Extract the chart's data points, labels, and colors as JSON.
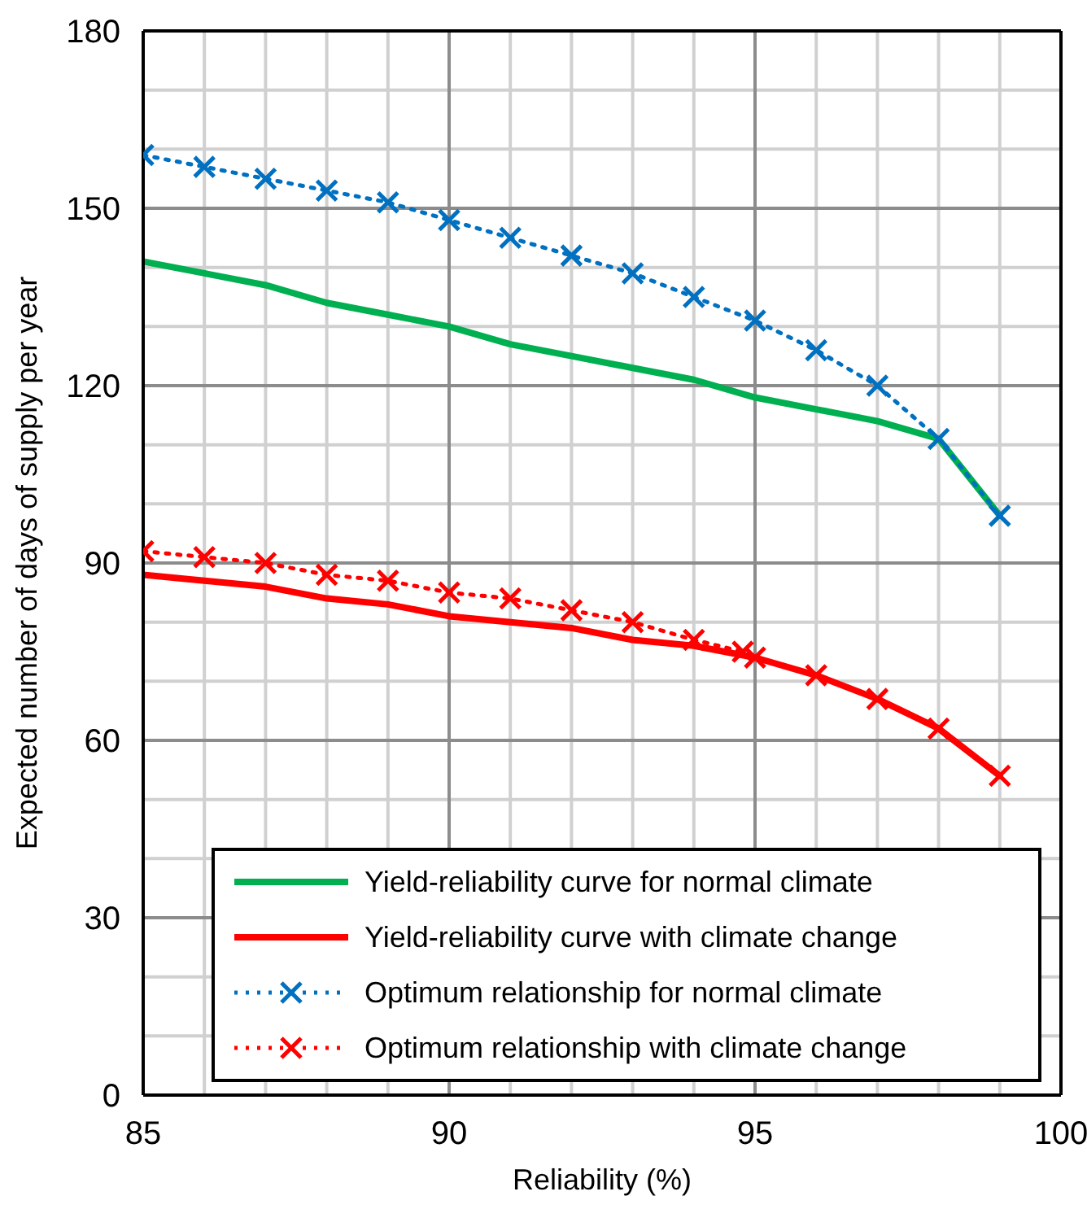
{
  "chart_data": {
    "type": "line",
    "xlabel": "Reliability (%)",
    "ylabel": "Expected number of days of supply per year",
    "xlim": [
      85,
      100
    ],
    "ylim": [
      0,
      180
    ],
    "xticks": [
      85,
      {
        "value": 86,
        "label": null
      },
      {
        "value": 87,
        "label": null
      },
      {
        "value": 88,
        "label": null
      },
      {
        "value": 89,
        "label": null
      },
      90,
      {
        "value": 91,
        "label": null
      },
      {
        "value": 92,
        "label": null
      },
      {
        "value": 93,
        "label": null
      },
      {
        "value": 94,
        "label": null
      },
      95,
      {
        "value": 96,
        "label": null
      },
      {
        "value": 97,
        "label": null
      },
      {
        "value": 98,
        "label": null
      },
      {
        "value": 99,
        "label": null
      },
      100
    ],
    "yticks": [
      0,
      {
        "value": 10,
        "label": null
      },
      {
        "value": 20,
        "label": null
      },
      30,
      {
        "value": 40,
        "label": null
      },
      {
        "value": 50,
        "label": null
      },
      60,
      {
        "value": 70,
        "label": null
      },
      {
        "value": 80,
        "label": null
      },
      90,
      {
        "value": 100,
        "label": null
      },
      {
        "value": 110,
        "label": null
      },
      120,
      {
        "value": 130,
        "label": null
      },
      {
        "value": 140,
        "label": null
      },
      150,
      {
        "value": 160,
        "label": null
      },
      {
        "value": 170,
        "label": null
      },
      180
    ],
    "grid": true,
    "legend": "bottom",
    "series": [
      {
        "name": "Yield-reliability curve for normal climate",
        "color": "#00b050",
        "line_style": "solid",
        "marker": "none",
        "x": [
          85,
          86,
          87,
          88,
          89,
          90,
          91,
          92,
          93,
          94,
          95,
          96,
          97,
          98,
          99
        ],
        "values": [
          141,
          139,
          137,
          134,
          132,
          130,
          127,
          125,
          123,
          121,
          118,
          116,
          114,
          111,
          98
        ]
      },
      {
        "name": "Yield-reliability curve with climate change",
        "color": "#ff0000",
        "line_style": "solid",
        "marker": "none",
        "x": [
          85,
          86,
          87,
          88,
          89,
          90,
          91,
          92,
          93,
          94,
          95,
          96,
          97,
          98,
          99
        ],
        "values": [
          88,
          87,
          86,
          84,
          83,
          81,
          80,
          79,
          77,
          76,
          74,
          71,
          67,
          62,
          54
        ]
      },
      {
        "name": "Optimum relationship for normal climate",
        "color": "#0070c0",
        "line_style": "dotted",
        "marker": "cross",
        "x": [
          85,
          86,
          87,
          88,
          89,
          90,
          91,
          92,
          93,
          94,
          95,
          96,
          97,
          98,
          99
        ],
        "values": [
          159,
          157,
          155,
          153,
          151,
          148,
          145,
          142,
          139,
          135,
          131,
          126,
          120,
          111,
          98
        ]
      },
      {
        "name": "Optimum relationship with climate change",
        "color": "#ff0000",
        "line_style": "dotted",
        "marker": "cross",
        "x": [
          85,
          86,
          87,
          88,
          89,
          90,
          91,
          92,
          93,
          94,
          94.8,
          95,
          96,
          97,
          98,
          99
        ],
        "values": [
          92,
          91,
          90,
          88,
          87,
          85,
          84,
          82,
          80,
          77,
          75,
          74,
          71,
          67,
          62,
          54
        ]
      }
    ]
  }
}
